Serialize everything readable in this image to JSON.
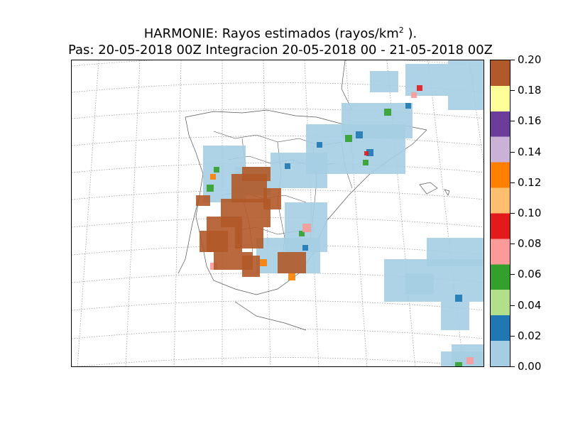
{
  "title": {
    "line1_prefix": "HARMONIE: Rayos estimados  (rayos/km",
    "line1_sup": "2",
    "line1_suffix": " ).",
    "line2": "Pas: 20-05-2018 00Z Integracion 20-05-2018 00 - 21-05-2018 00Z"
  },
  "colorbar": {
    "labels": [
      "0.20",
      "0.18",
      "0.16",
      "0.14",
      "0.12",
      "0.10",
      "0.08",
      "0.06",
      "0.04",
      "0.02",
      "0.00"
    ],
    "stops": [
      "#a6cee3",
      "#1f78b4",
      "#b2df8a",
      "#33a02c",
      "#fb9a99",
      "#e31a1c",
      "#fdbf6f",
      "#ff7f00",
      "#cab2d6",
      "#6a3d9a",
      "#ffff99",
      "#b15928"
    ],
    "min": 0.0,
    "max": 0.2
  },
  "colors": {
    "light_blue": "#a6cee3",
    "blue": "#1f78b4",
    "light_green": "#b2df8a",
    "green": "#33a02c",
    "pink": "#fb9a99",
    "red": "#e31a1c",
    "light_orange": "#fdbf6f",
    "orange": "#ff7f00",
    "lilac": "#cab2d6",
    "purple": "#6a3d9a",
    "yellow": "#ffff99",
    "brown": "#b15928"
  }
}
